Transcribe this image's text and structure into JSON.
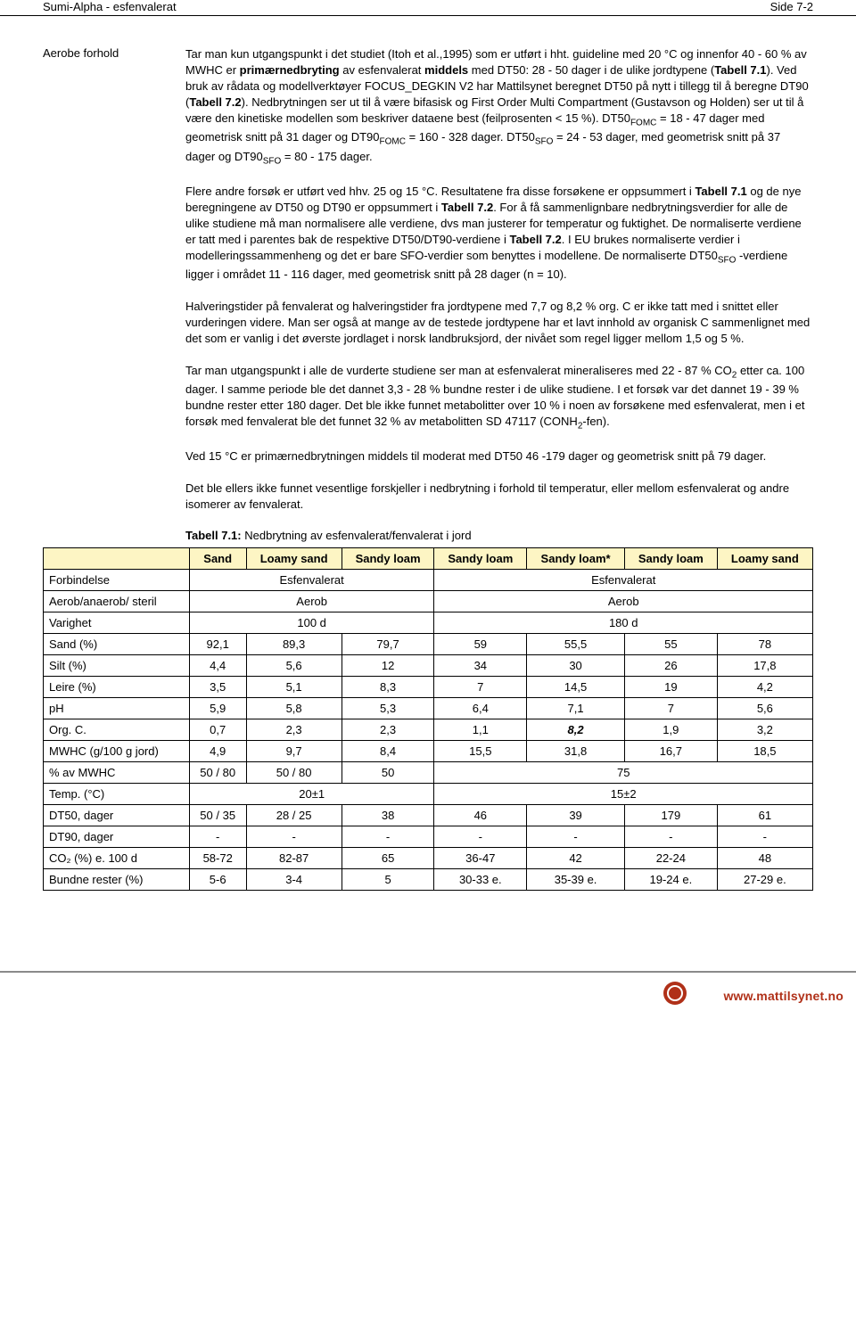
{
  "header": {
    "left": "Sumi-Alpha - esfenvalerat",
    "right": "Side 7-2"
  },
  "section_label": "Aerobe forhold",
  "paragraphs": {
    "p1_a": "Tar man kun utgangspunkt i det studiet (Itoh et al.,1995) som er utført i hht. guideline med 20 °C og innenfor 40 - 60 % av MWHC er ",
    "p1_b": "primærnedbryting",
    "p1_c": " av esfenvalerat ",
    "p1_d": "middels",
    "p1_e": " med DT50: 28 - 50 dager i de ulike jordtypene (",
    "p1_f": "Tabell 7.1",
    "p1_g": "). Ved bruk av rådata og modellverktøyer FOCUS_DEGKIN V2 har Mattilsynet beregnet DT50 på nytt i tillegg til å beregne DT90 (",
    "p1_h": "Tabell 7.2",
    "p1_i": "). Nedbrytningen ser ut til å være bifasisk og First Order Multi Compartment (Gustavson og Holden) ser ut til å være den kinetiske modellen som beskriver dataene best (feilprosenten < 15 %). DT50",
    "p1_j": " = 18 - 47 dager med geometrisk snitt på 31 dager og DT90",
    "p1_k": " = 160 - 328 dager. DT50",
    "p1_l": " = 24 - 53 dager, med geometrisk snitt på 37 dager og DT90",
    "p1_m": " = 80 - 175 dager.",
    "p2_a": "Flere andre forsøk er utført ved hhv. 25 og 15 °C. Resultatene fra disse forsøkene er oppsummert i ",
    "p2_b": "Tabell 7.1",
    "p2_c": " og de nye beregningene av DT50 og DT90 er oppsummert i ",
    "p2_d": "Tabell 7.2",
    "p2_e": ". For å få sammenlignbare nedbrytningsverdier for alle de ulike studiene må man normalisere alle verdiene, dvs man justerer for temperatur og fuktighet. De normaliserte verdiene er tatt med i parentes bak de respektive DT50/DT90-verdiene i ",
    "p2_f": "Tabell 7.2",
    "p2_g": ". I EU brukes normaliserte verdier i modelleringssammenheng og det er bare SFO-verdier som benyttes i modellene. De normaliserte DT50",
    "p2_h": " -verdiene ligger i området 11 - 116 dager, med geometrisk snitt på 28 dager (n = 10).",
    "p3": "Halveringstider på fenvalerat og halveringstider fra jordtypene med 7,7 og 8,2 % org. C er ikke tatt med i snittet eller vurderingen videre. Man ser også at mange av de testede jordtypene har et lavt innhold av organisk C sammenlignet med det som er vanlig i det øverste jordlaget i norsk landbruksjord, der nivået som regel ligger mellom 1,5 og 5 %.",
    "p4_a": "Tar man utgangspunkt i alle de vurderte studiene ser man at esfenvalerat mineraliseres med 22 - 87 % CO",
    "p4_b": " etter ca. 100 dager. I samme periode ble det dannet 3,3 - 28 % bundne rester i de ulike studiene. I et forsøk var det dannet 19 - 39 % bundne rester etter 180 dager. Det ble ikke funnet metabolitter over 10 % i noen av forsøkene med esfenvalerat, men i et forsøk med fenvalerat ble det funnet 32 % av metabolitten SD 47117 (CONH",
    "p4_c": "-fen).",
    "p5": "Ved 15 °C er primærnedbrytningen middels til moderat med DT50 46 -179 dager og geometrisk snitt på 79 dager.",
    "p6": "Det ble ellers ikke funnet vesentlige forskjeller i nedbrytning i forhold til temperatur, eller mellom esfenvalerat og andre isomerer av fenvalerat."
  },
  "sub": {
    "fomc": "FOMC",
    "sfo": "SFO",
    "two": "2"
  },
  "table": {
    "caption_a": "Tabell 7.1:",
    "caption_b": " Nedbrytning av esfenvalerat/fenvalerat i jord",
    "top_headers": [
      "Sand",
      "Loamy sand",
      "Sandy loam",
      "Sandy loam",
      "Sandy loam*",
      "Sandy loam",
      "Loamy sand"
    ],
    "row_labels": [
      "Forbindelse",
      "Aerob/anaerob/ steril",
      "Varighet",
      "Sand (%)",
      "Silt (%)",
      "Leire (%)",
      "pH",
      "Org. C.",
      "MWHC (g/100 g jord)",
      "% av MWHC",
      "Temp. (°C)",
      "DT50, dager",
      "DT90, dager",
      "CO₂ (%) e. 100 d",
      "Bundne rester (%)"
    ],
    "forbindelse": [
      "Esfenvalerat",
      "Esfenvalerat"
    ],
    "aerob": [
      "Aerob",
      "Aerob"
    ],
    "varighet": [
      "100 d",
      "180 d"
    ],
    "rows": {
      "sand": [
        "92,1",
        "89,3",
        "79,7",
        "59",
        "55,5",
        "55",
        "78"
      ],
      "silt": [
        "4,4",
        "5,6",
        "12",
        "34",
        "30",
        "26",
        "17,8"
      ],
      "leire": [
        "3,5",
        "5,1",
        "8,3",
        "7",
        "14,5",
        "19",
        "4,2"
      ],
      "ph": [
        "5,9",
        "5,8",
        "5,3",
        "6,4",
        "7,1",
        "7",
        "5,6"
      ],
      "orgc": [
        "0,7",
        "2,3",
        "2,3",
        "1,1",
        "8,2",
        "1,9",
        "3,2"
      ],
      "mwhc_g": [
        "4,9",
        "9,7",
        "8,4",
        "15,5",
        "31,8",
        "16,7",
        "18,5"
      ],
      "mwhc_pct": [
        "50 / 80",
        "50 / 80",
        "50",
        "75"
      ],
      "temp": [
        "20±1",
        "15±2"
      ],
      "dt50": [
        "50 / 35",
        "28 / 25",
        "38",
        "46",
        "39",
        "179",
        "61"
      ],
      "dt90": [
        "-",
        "-",
        "-",
        "-",
        "-",
        "-",
        "-"
      ],
      "co2": [
        "58-72",
        "82-87",
        "65",
        "36-47",
        "42",
        "22-24",
        "48"
      ],
      "bundne": [
        "5-6",
        "3-4",
        "5",
        "30-33 e.",
        "35-39 e.",
        "19-24 e.",
        "27-29 e."
      ]
    },
    "orgc_bold_index": 4,
    "colors": {
      "header_bg": "#fdf5c4",
      "border": "#000000"
    }
  },
  "footer": {
    "url": "www.mattilsynet.no"
  }
}
